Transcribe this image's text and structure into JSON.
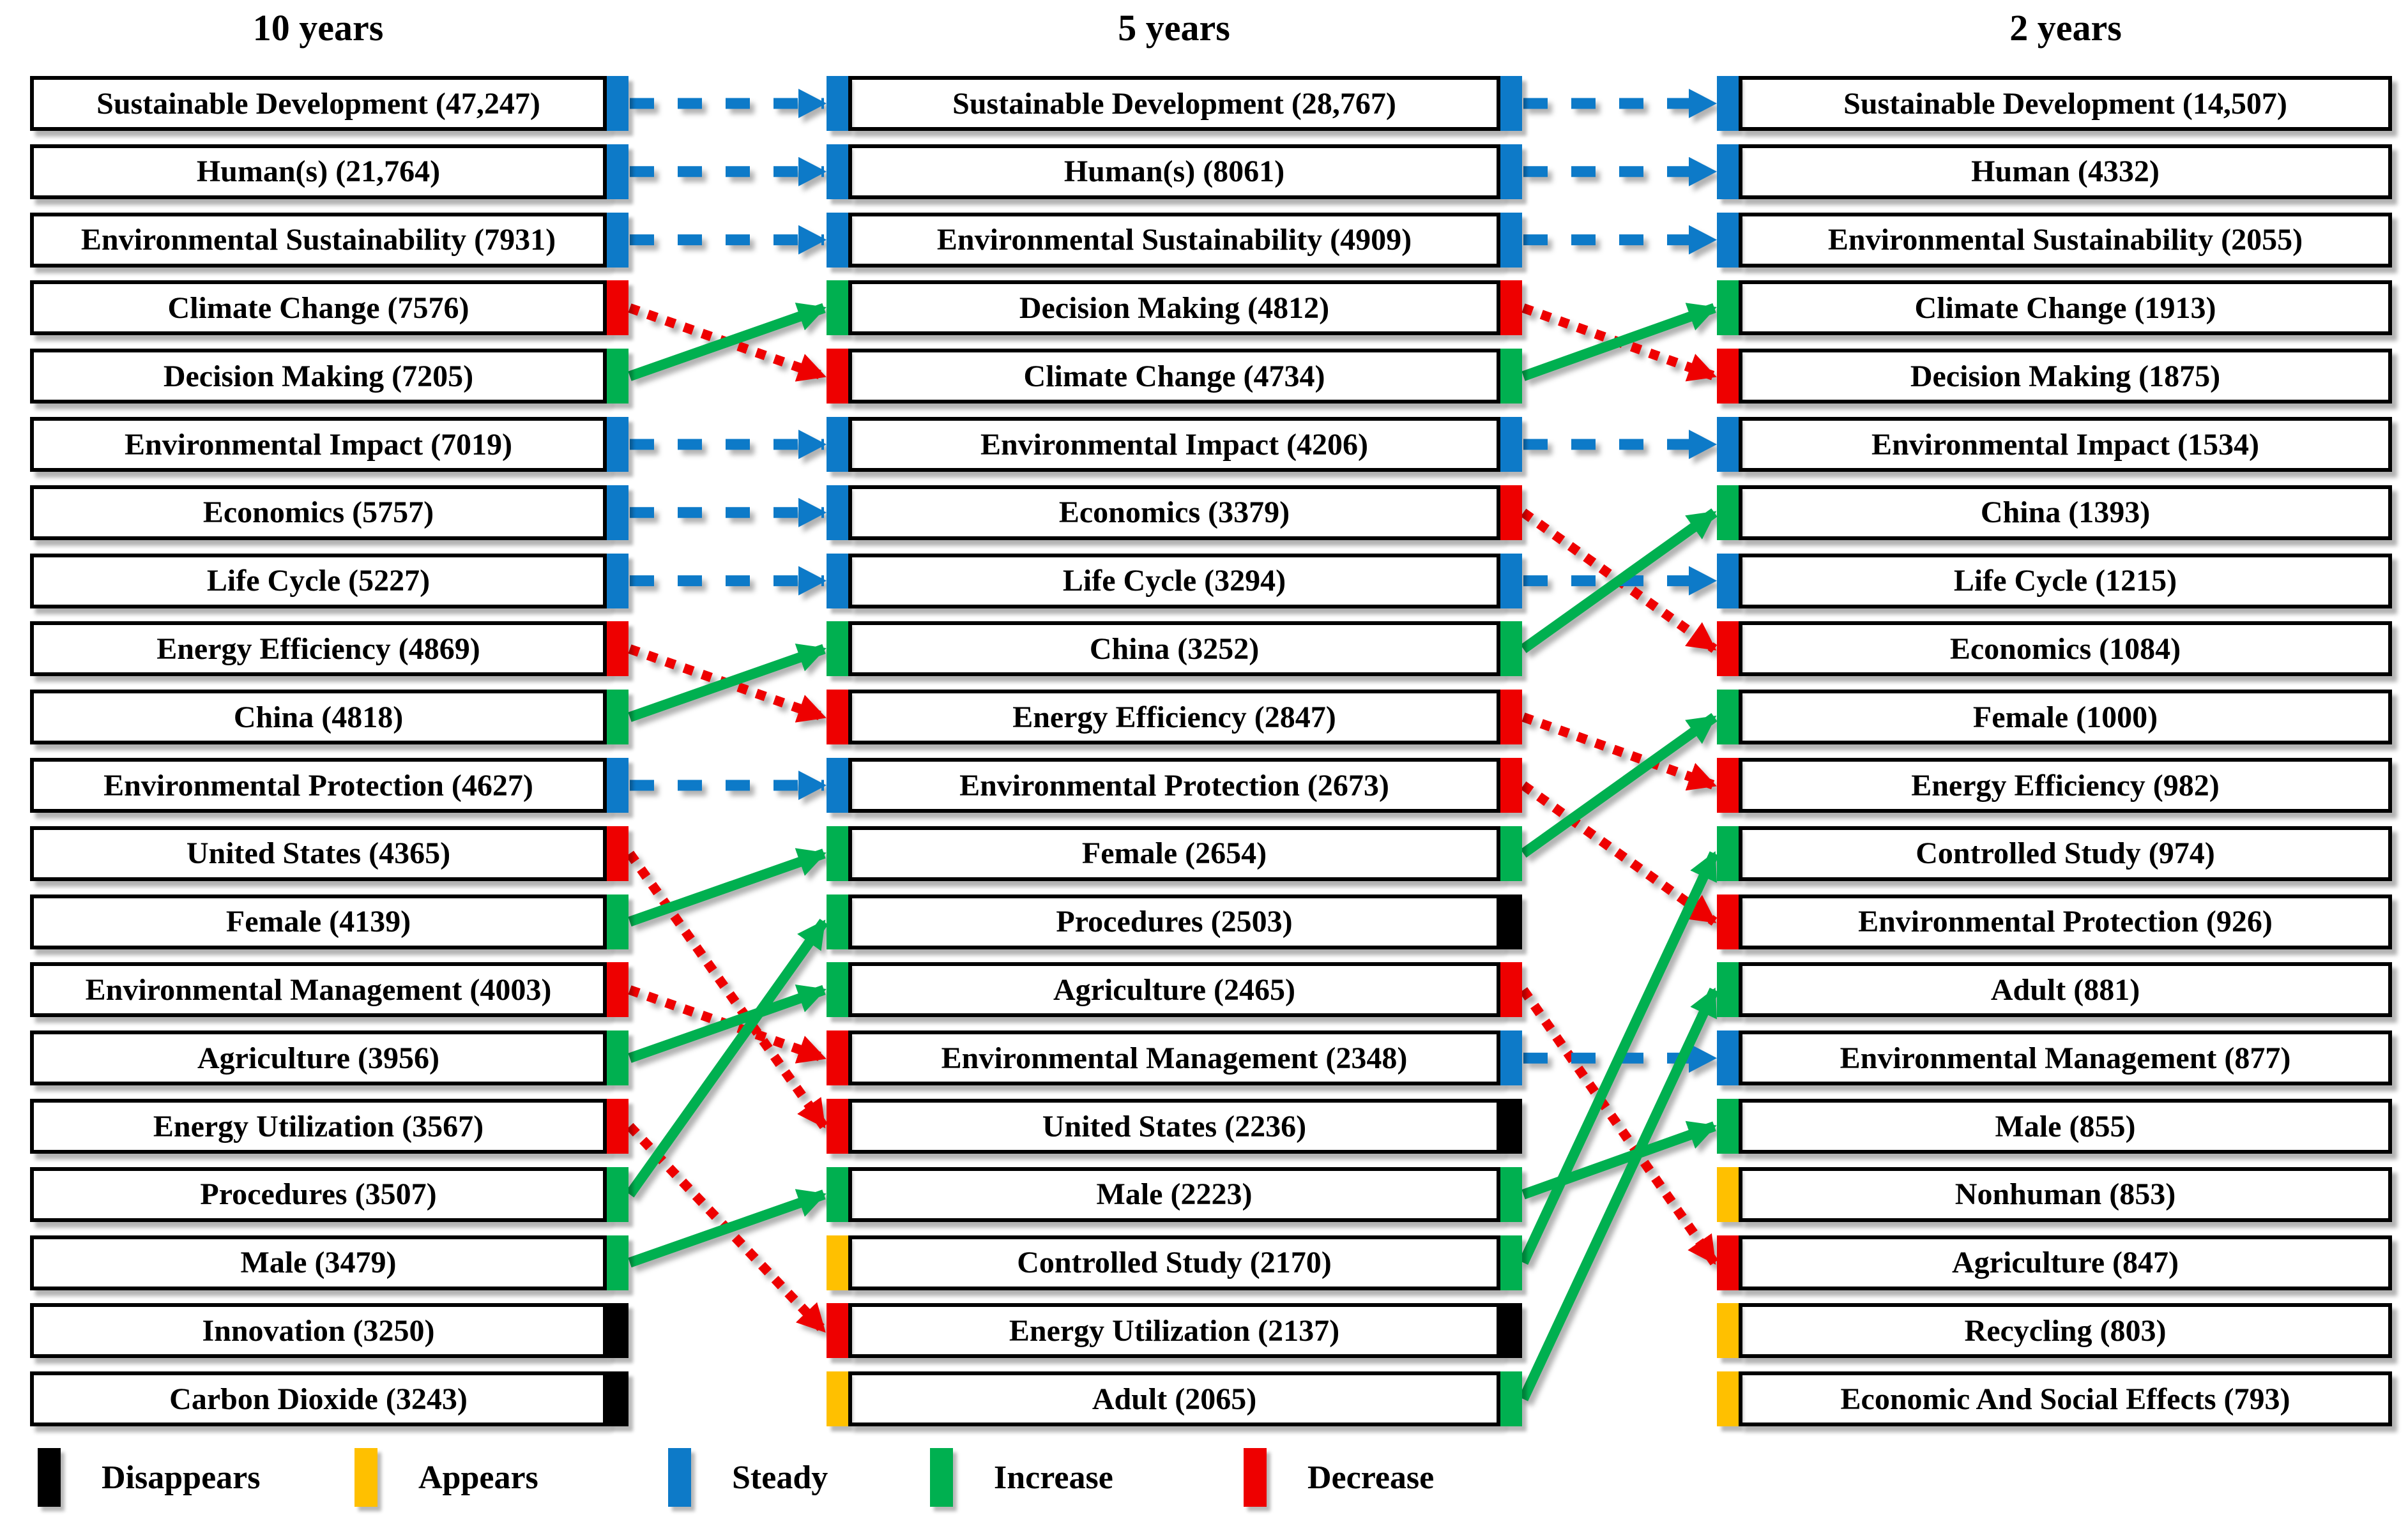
{
  "figure": {
    "description_colors": {
      "steady": "#0d7ac8",
      "increase": "#00b050",
      "decrease": "#ee0000",
      "appears": "#ffc000",
      "disappears": "#000000"
    }
  },
  "columns": [
    {
      "header": "10 years",
      "rows": [
        {
          "label": "Sustainable Development (47,247)",
          "out": "steady"
        },
        {
          "label": "Human(s) (21,764)",
          "out": "steady"
        },
        {
          "label": "Environmental Sustainability (7931)",
          "out": "steady"
        },
        {
          "label": "Climate Change (7576)",
          "out": "decrease"
        },
        {
          "label": "Decision Making (7205)",
          "out": "increase"
        },
        {
          "label": "Environmental Impact (7019)",
          "out": "steady"
        },
        {
          "label": "Economics (5757)",
          "out": "steady"
        },
        {
          "label": "Life Cycle (5227)",
          "out": "steady"
        },
        {
          "label": "Energy Efficiency (4869)",
          "out": "decrease"
        },
        {
          "label": "China (4818)",
          "out": "increase"
        },
        {
          "label": "Environmental Protection (4627)",
          "out": "steady"
        },
        {
          "label": "United States (4365)",
          "out": "decrease"
        },
        {
          "label": "Female (4139)",
          "out": "increase"
        },
        {
          "label": "Environmental Management (4003)",
          "out": "decrease"
        },
        {
          "label": "Agriculture (3956)",
          "out": "increase"
        },
        {
          "label": "Energy Utilization (3567)",
          "out": "decrease"
        },
        {
          "label": "Procedures (3507)",
          "out": "increase"
        },
        {
          "label": "Male (3479)",
          "out": "increase"
        },
        {
          "label": "Innovation (3250)",
          "out": "disappears"
        },
        {
          "label": "Carbon Dioxide (3243)",
          "out": "disappears"
        }
      ]
    },
    {
      "header": "5 years",
      "rows": [
        {
          "label": "Sustainable Development (28,767)",
          "in": "steady",
          "out": "steady"
        },
        {
          "label": "Human(s) (8061)",
          "in": "steady",
          "out": "steady"
        },
        {
          "label": "Environmental Sustainability (4909)",
          "in": "steady",
          "out": "steady"
        },
        {
          "label": "Decision Making (4812)",
          "in": "increase",
          "out": "decrease"
        },
        {
          "label": "Climate Change (4734)",
          "in": "decrease",
          "out": "increase"
        },
        {
          "label": "Environmental Impact (4206)",
          "in": "steady",
          "out": "steady"
        },
        {
          "label": "Economics (3379)",
          "in": "steady",
          "out": "decrease"
        },
        {
          "label": "Life Cycle (3294)",
          "in": "steady",
          "out": "steady"
        },
        {
          "label": "China (3252)",
          "in": "increase",
          "out": "increase"
        },
        {
          "label": "Energy Efficiency (2847)",
          "in": "decrease",
          "out": "decrease"
        },
        {
          "label": "Environmental Protection (2673)",
          "in": "steady",
          "out": "decrease"
        },
        {
          "label": "Female (2654)",
          "in": "increase",
          "out": "increase"
        },
        {
          "label": "Procedures (2503)",
          "in": "increase",
          "out": "disappears"
        },
        {
          "label": "Agriculture (2465)",
          "in": "increase",
          "out": "decrease"
        },
        {
          "label": "Environmental Management (2348)",
          "in": "decrease",
          "out": "steady"
        },
        {
          "label": "United States (2236)",
          "in": "decrease",
          "out": "disappears"
        },
        {
          "label": "Male (2223)",
          "in": "increase",
          "out": "increase"
        },
        {
          "label": "Controlled Study (2170)",
          "in": "appears",
          "out": "increase"
        },
        {
          "label": "Energy Utilization (2137)",
          "in": "decrease",
          "out": "disappears"
        },
        {
          "label": "Adult (2065)",
          "in": "appears",
          "out": "increase"
        }
      ]
    },
    {
      "header": "2 years",
      "rows": [
        {
          "label": "Sustainable Development (14,507)",
          "in": "steady"
        },
        {
          "label": "Human (4332)",
          "in": "steady"
        },
        {
          "label": "Environmental Sustainability (2055)",
          "in": "steady"
        },
        {
          "label": "Climate Change (1913)",
          "in": "increase"
        },
        {
          "label": "Decision Making (1875)",
          "in": "decrease"
        },
        {
          "label": "Environmental Impact (1534)",
          "in": "steady"
        },
        {
          "label": "China (1393)",
          "in": "increase"
        },
        {
          "label": "Life Cycle (1215)",
          "in": "steady"
        },
        {
          "label": "Economics (1084)",
          "in": "decrease"
        },
        {
          "label": "Female (1000)",
          "in": "increase"
        },
        {
          "label": "Energy Efficiency (982)",
          "in": "decrease"
        },
        {
          "label": "Controlled Study (974)",
          "in": "increase"
        },
        {
          "label": "Environmental Protection (926)",
          "in": "decrease"
        },
        {
          "label": "Adult (881)",
          "in": "increase"
        },
        {
          "label": "Environmental Management (877)",
          "in": "steady"
        },
        {
          "label": "Male (855)",
          "in": "increase"
        },
        {
          "label": "Nonhuman (853)",
          "in": "appears"
        },
        {
          "label": "Agriculture (847)",
          "in": "decrease"
        },
        {
          "label": "Recycling (803)",
          "in": "appears"
        },
        {
          "label": "Economic And Social Effects (793)",
          "in": "appears"
        }
      ]
    }
  ],
  "transitions": {
    "ten_to_five": [
      {
        "from": 1,
        "to": 1,
        "type": "steady"
      },
      {
        "from": 2,
        "to": 2,
        "type": "steady"
      },
      {
        "from": 3,
        "to": 3,
        "type": "steady"
      },
      {
        "from": 4,
        "to": 5,
        "type": "decrease"
      },
      {
        "from": 5,
        "to": 4,
        "type": "increase"
      },
      {
        "from": 6,
        "to": 6,
        "type": "steady"
      },
      {
        "from": 7,
        "to": 7,
        "type": "steady"
      },
      {
        "from": 8,
        "to": 8,
        "type": "steady"
      },
      {
        "from": 9,
        "to": 10,
        "type": "decrease"
      },
      {
        "from": 10,
        "to": 9,
        "type": "increase"
      },
      {
        "from": 11,
        "to": 11,
        "type": "steady"
      },
      {
        "from": 12,
        "to": 16,
        "type": "decrease"
      },
      {
        "from": 13,
        "to": 12,
        "type": "increase"
      },
      {
        "from": 14,
        "to": 15,
        "type": "decrease"
      },
      {
        "from": 15,
        "to": 14,
        "type": "increase"
      },
      {
        "from": 16,
        "to": 19,
        "type": "decrease"
      },
      {
        "from": 17,
        "to": 13,
        "type": "increase"
      },
      {
        "from": 18,
        "to": 17,
        "type": "increase"
      }
    ],
    "five_to_two": [
      {
        "from": 1,
        "to": 1,
        "type": "steady"
      },
      {
        "from": 2,
        "to": 2,
        "type": "steady"
      },
      {
        "from": 3,
        "to": 3,
        "type": "steady"
      },
      {
        "from": 4,
        "to": 5,
        "type": "decrease"
      },
      {
        "from": 5,
        "to": 4,
        "type": "increase"
      },
      {
        "from": 6,
        "to": 6,
        "type": "steady"
      },
      {
        "from": 7,
        "to": 9,
        "type": "decrease"
      },
      {
        "from": 8,
        "to": 8,
        "type": "steady"
      },
      {
        "from": 9,
        "to": 7,
        "type": "increase"
      },
      {
        "from": 10,
        "to": 11,
        "type": "decrease"
      },
      {
        "from": 11,
        "to": 13,
        "type": "decrease"
      },
      {
        "from": 12,
        "to": 10,
        "type": "increase"
      },
      {
        "from": 14,
        "to": 18,
        "type": "decrease"
      },
      {
        "from": 15,
        "to": 15,
        "type": "steady"
      },
      {
        "from": 17,
        "to": 16,
        "type": "increase"
      },
      {
        "from": 18,
        "to": 12,
        "type": "increase"
      },
      {
        "from": 20,
        "to": 14,
        "type": "increase"
      }
    ]
  },
  "legend": {
    "items": [
      {
        "label": "Disappears",
        "type": "disappears"
      },
      {
        "label": "Appears",
        "type": "appears"
      },
      {
        "label": "Steady",
        "type": "steady"
      },
      {
        "label": "Increase",
        "type": "increase"
      },
      {
        "label": "Decrease",
        "type": "decrease"
      }
    ]
  }
}
